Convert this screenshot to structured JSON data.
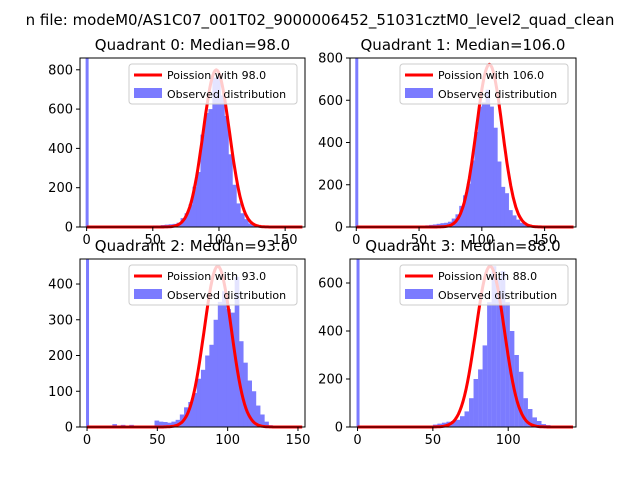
{
  "suptitle": "n file: modeM0/AS1C07_001T02_9000006452_51031cztM0_level2_quad_clean",
  "colors": {
    "observed": "#7b7bff",
    "poisson": "#ff0000",
    "axis": "#000000"
  },
  "chart_data": [
    {
      "type": "bar",
      "title": "Quadrant 0: Median=98.0",
      "xlim": [
        -5,
        165
      ],
      "ylim": [
        0,
        860
      ],
      "xticks": [
        0,
        50,
        100,
        150
      ],
      "yticks": [
        0,
        200,
        400,
        600,
        800
      ],
      "legend": {
        "location": "top-right",
        "entries": [
          "Poission with 98.0",
          "Observed distribution"
        ]
      },
      "observed": {
        "name": "Observed distribution",
        "spike_at": 0,
        "spike_value": 860,
        "bin_width": 3.4,
        "bin_start": [
          0,
          50,
          53,
          56,
          59,
          62,
          65,
          68,
          71,
          74,
          77,
          80,
          83,
          86,
          89,
          92,
          95,
          98,
          101,
          104,
          107,
          110,
          113,
          116,
          119,
          122,
          125,
          128,
          131,
          134
        ],
        "values": [
          0,
          8,
          8,
          10,
          12,
          14,
          16,
          22,
          45,
          70,
          115,
          205,
          280,
          470,
          580,
          600,
          760,
          770,
          670,
          565,
          370,
          215,
          120,
          70,
          40,
          18,
          12,
          8,
          4,
          2
        ]
      },
      "poisson": {
        "name": "Poission with 98.0",
        "mean": 98.0,
        "peak": 800
      }
    },
    {
      "type": "bar",
      "title": "Quadrant 1: Median=106.0",
      "xlim": [
        -5,
        175
      ],
      "ylim": [
        0,
        800
      ],
      "xticks": [
        0,
        50,
        100,
        150
      ],
      "yticks": [
        0,
        200,
        400,
        600,
        800
      ],
      "legend": {
        "location": "top-right",
        "entries": [
          "Poission with 106.0",
          "Observed distribution"
        ]
      },
      "observed": {
        "name": "Observed distribution",
        "spike_at": 0,
        "spike_value": 800,
        "bin_width": 3.6,
        "bin_start": [
          0,
          55,
          58,
          61,
          64,
          67,
          70,
          73,
          76,
          79,
          82,
          85,
          88,
          91,
          94,
          97,
          100,
          103,
          106,
          109,
          112,
          115,
          118,
          121,
          124,
          127,
          130,
          133,
          136,
          139,
          142
        ],
        "values": [
          0,
          8,
          10,
          12,
          15,
          18,
          20,
          25,
          40,
          60,
          100,
          150,
          205,
          315,
          450,
          570,
          590,
          650,
          570,
          470,
          310,
          190,
          160,
          80,
          55,
          35,
          20,
          10,
          6,
          4,
          2
        ]
      },
      "poisson": {
        "name": "Poission with 106.0",
        "mean": 106.0,
        "peak": 770
      }
    },
    {
      "type": "bar",
      "title": "Quadrant 2: Median=93.0",
      "xlim": [
        -5,
        155
      ],
      "ylim": [
        0,
        470
      ],
      "xticks": [
        0,
        50,
        100,
        150
      ],
      "yticks": [
        0,
        100,
        200,
        300,
        400
      ],
      "legend": {
        "location": "top-right",
        "entries": [
          "Poission with 93.0",
          "Observed distribution"
        ]
      },
      "observed": {
        "name": "Observed distribution",
        "spike_at": 0,
        "spike_value": 470,
        "bin_width": 3.3,
        "bin_start": [
          0,
          18,
          21,
          24,
          27,
          30,
          33,
          48,
          51,
          54,
          57,
          60,
          63,
          66,
          69,
          72,
          75,
          78,
          81,
          84,
          87,
          90,
          93,
          96,
          99,
          102,
          105,
          108,
          111,
          114,
          117,
          120,
          123,
          126,
          129
        ],
        "values": [
          0,
          8,
          4,
          6,
          3,
          6,
          3,
          18,
          15,
          14,
          12,
          15,
          20,
          35,
          55,
          70,
          95,
          135,
          160,
          200,
          230,
          300,
          350,
          380,
          330,
          320,
          420,
          240,
          180,
          130,
          100,
          60,
          35,
          15,
          5
        ]
      },
      "poisson": {
        "name": "Poission with 93.0",
        "mean": 93.0,
        "peak": 450
      }
    },
    {
      "type": "bar",
      "title": "Quadrant 3: Median=88.0",
      "xlim": [
        -5,
        145
      ],
      "ylim": [
        0,
        700
      ],
      "xticks": [
        0,
        50,
        100
      ],
      "yticks": [
        0,
        200,
        400,
        600
      ],
      "legend": {
        "location": "top-right",
        "entries": [
          "Poission with 88.0",
          "Observed distribution"
        ]
      },
      "observed": {
        "name": "Observed distribution",
        "spike_at": 0,
        "spike_value": 700,
        "bin_width": 3.1,
        "bin_start": [
          0,
          50,
          53,
          56,
          59,
          62,
          65,
          68,
          71,
          74,
          77,
          80,
          83,
          86,
          89,
          92,
          95,
          98,
          101,
          104,
          107,
          110,
          113,
          116,
          119,
          122,
          125,
          128,
          131,
          134
        ],
        "values": [
          0,
          10,
          14,
          18,
          22,
          25,
          30,
          45,
          65,
          120,
          200,
          240,
          340,
          520,
          670,
          620,
          650,
          520,
          400,
          300,
          230,
          120,
          75,
          40,
          25,
          12,
          8,
          6,
          4,
          2
        ]
      },
      "poisson": {
        "name": "Poission with 88.0",
        "mean": 88.0,
        "peak": 670
      }
    }
  ]
}
